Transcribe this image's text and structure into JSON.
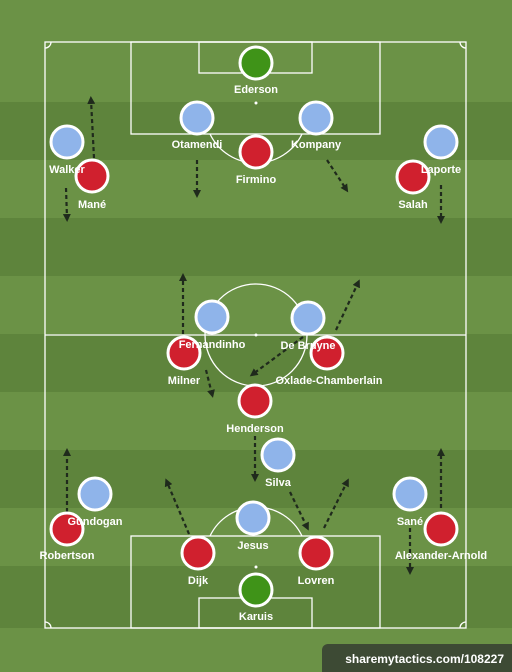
{
  "colors": {
    "grass_light": "#6b9246",
    "grass_dark": "#5e843c",
    "line": "#ffffff",
    "team_red": "#d0202e",
    "team_blue": "#8fb4ea",
    "goalkeeper": "#3f9318",
    "arrow": "#1f2a1c"
  },
  "players": [
    {
      "id": "ederson",
      "name": "Ederson",
      "team": "goalkeeper"
    },
    {
      "id": "otamendi",
      "name": "Otamendi",
      "team": "blue"
    },
    {
      "id": "kompany",
      "name": "Kompany",
      "team": "blue"
    },
    {
      "id": "firmino",
      "name": "Firmino",
      "team": "red"
    },
    {
      "id": "walker",
      "name": "Walker",
      "team": "blue"
    },
    {
      "id": "mane",
      "name": "Mané",
      "team": "red"
    },
    {
      "id": "laporte",
      "name": "Laporte",
      "team": "blue"
    },
    {
      "id": "salah",
      "name": "Salah",
      "team": "red"
    },
    {
      "id": "fernandinho",
      "name": "Fernandinho",
      "team": "blue"
    },
    {
      "id": "debruyne",
      "name": "De Bruyne",
      "team": "blue"
    },
    {
      "id": "milner",
      "name": "Milner",
      "team": "red"
    },
    {
      "id": "oxlade",
      "name": "Oxlade-Chamberlain",
      "team": "red"
    },
    {
      "id": "henderson",
      "name": "Henderson",
      "team": "red"
    },
    {
      "id": "silva",
      "name": "Silva",
      "team": "blue"
    },
    {
      "id": "gundogan",
      "name": "Gundogan",
      "team": "blue"
    },
    {
      "id": "robertson",
      "name": "Robertson",
      "team": "red"
    },
    {
      "id": "sane",
      "name": "Sané",
      "team": "blue"
    },
    {
      "id": "alexander",
      "name": "Alexander-Arnold",
      "team": "red"
    },
    {
      "id": "jesus",
      "name": "Jesus",
      "team": "blue"
    },
    {
      "id": "dijk",
      "name": "Dijk",
      "team": "red"
    },
    {
      "id": "lovren",
      "name": "Lovren",
      "team": "red"
    },
    {
      "id": "karuis",
      "name": "Karuis",
      "team": "goalkeeper"
    }
  ],
  "watermark": "sharemytactics.com/108227"
}
